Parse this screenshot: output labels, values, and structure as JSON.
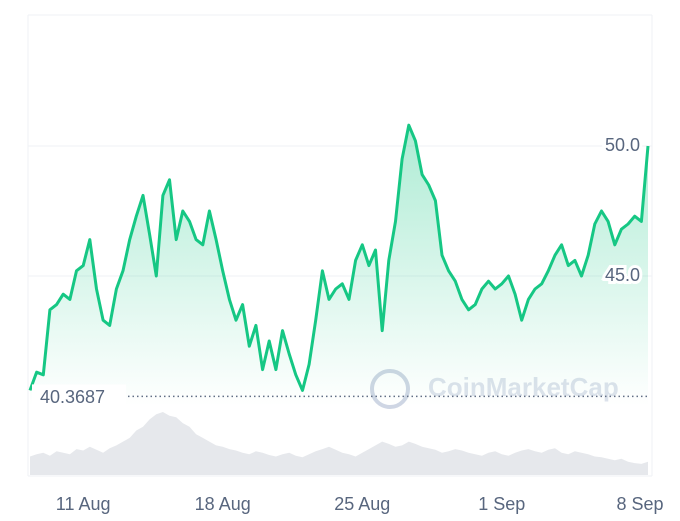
{
  "chart_data": {
    "type": "line",
    "categories": [
      null,
      null,
      null,
      null,
      null,
      null,
      null,
      null,
      "11 Aug",
      null,
      null,
      null,
      null,
      null,
      null,
      null,
      null,
      null,
      null,
      null,
      null,
      null,
      null,
      null,
      null,
      null,
      null,
      null,
      null,
      "18 Aug",
      null,
      null,
      null,
      null,
      null,
      null,
      null,
      null,
      null,
      null,
      null,
      null,
      null,
      null,
      null,
      null,
      null,
      null,
      null,
      null,
      "25 Aug",
      null,
      null,
      null,
      null,
      null,
      null,
      null,
      null,
      null,
      null,
      null,
      null,
      null,
      null,
      null,
      null,
      null,
      null,
      null,
      null,
      "1 Sep",
      null,
      null,
      null,
      null,
      null,
      null,
      null,
      null,
      null,
      null,
      null,
      null,
      null,
      null,
      null,
      null,
      null,
      null,
      null,
      null,
      "8 Sep",
      null
    ],
    "series": [
      {
        "color": "#16c784",
        "values": [
          40.6,
          41.3,
          41.2,
          43.7,
          43.9,
          44.3,
          44.1,
          45.2,
          45.4,
          46.4,
          44.5,
          43.3,
          43.1,
          44.5,
          45.2,
          46.4,
          47.3,
          48.1,
          46.6,
          45.0,
          48.1,
          48.7,
          46.4,
          47.5,
          47.1,
          46.4,
          46.2,
          47.5,
          46.4,
          45.2,
          44.1,
          43.3,
          43.9,
          42.3,
          43.1,
          41.4,
          42.5,
          41.4,
          42.9,
          42.0,
          41.2,
          40.6,
          41.6,
          43.3,
          45.2,
          44.1,
          44.5,
          44.7,
          44.1,
          45.6,
          46.2,
          45.4,
          46.0,
          42.9,
          45.6,
          47.1,
          49.5,
          50.8,
          50.2,
          48.9,
          48.5,
          47.9,
          45.8,
          45.2,
          44.8,
          44.1,
          43.7,
          43.9,
          44.5,
          44.8,
          44.5,
          44.7,
          45.0,
          44.3,
          43.3,
          44.1,
          44.5,
          44.7,
          45.2,
          45.8,
          46.2,
          45.4,
          45.6,
          45.0,
          45.8,
          47.0,
          47.5,
          47.1,
          46.2,
          46.8,
          47.0,
          47.3,
          47.1,
          50.0
        ]
      }
    ],
    "volume": {
      "color": "#e6e8ec",
      "values": [
        25,
        28,
        30,
        26,
        32,
        30,
        28,
        35,
        33,
        38,
        34,
        30,
        36,
        40,
        45,
        50,
        60,
        65,
        75,
        82,
        85,
        80,
        78,
        70,
        65,
        55,
        50,
        45,
        40,
        38,
        35,
        33,
        30,
        28,
        32,
        30,
        27,
        25,
        28,
        30,
        26,
        24,
        28,
        32,
        35,
        38,
        34,
        30,
        28,
        25,
        30,
        35,
        40,
        45,
        42,
        38,
        40,
        45,
        42,
        38,
        36,
        34,
        30,
        32,
        35,
        33,
        30,
        28,
        26,
        30,
        32,
        28,
        26,
        30,
        33,
        35,
        32,
        30,
        34,
        36,
        30,
        28,
        32,
        30,
        28,
        25,
        24,
        22,
        20,
        22,
        18,
        16,
        15,
        18
      ]
    },
    "ylim": [
      40,
      55
    ],
    "yticks": [
      {
        "value": 45,
        "label": "45.0"
      },
      {
        "value": 50,
        "label": "50.0"
      }
    ],
    "reference": 40.3687,
    "watermark": "CoinMarketCap",
    "grid": true
  }
}
